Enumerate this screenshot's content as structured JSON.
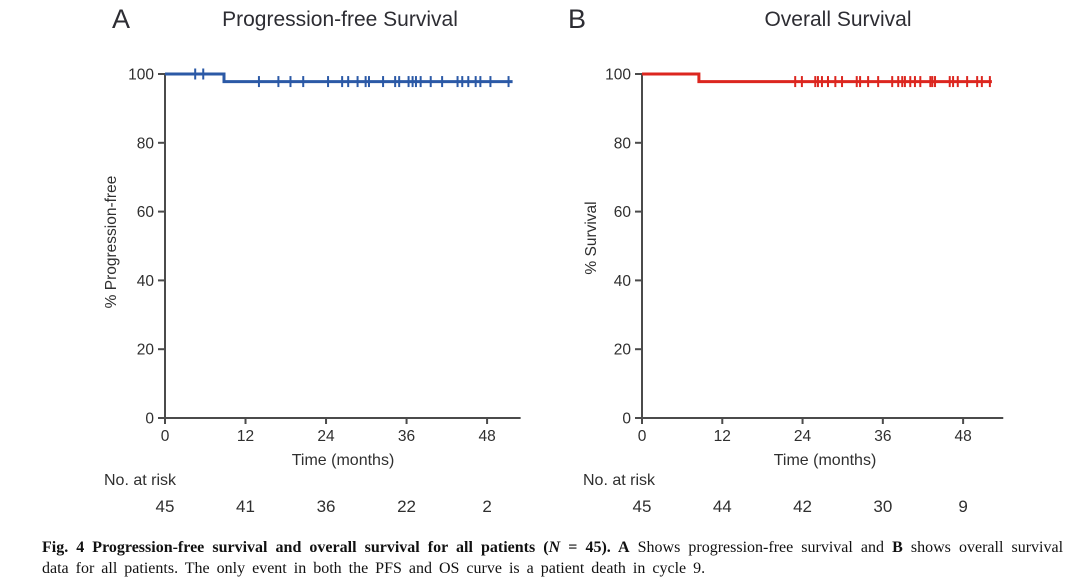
{
  "page": {
    "background": "#ffffff"
  },
  "chart_data": [
    {
      "type": "line",
      "subtype": "kaplan-meier-step",
      "panel": "A",
      "title": "Progression-free Survival",
      "ylabel": "% Progression-free",
      "xlabel": "Time (months)",
      "xticks": [
        0,
        12,
        24,
        36,
        48
      ],
      "yticks": [
        0,
        20,
        40,
        60,
        80,
        100
      ],
      "xlim": [
        0,
        53
      ],
      "ylim": [
        0,
        100
      ],
      "grid": false,
      "legend": "none",
      "color": "#2b59a6",
      "steps": [
        [
          0,
          100
        ],
        [
          8.8,
          100
        ],
        [
          8.8,
          97.8
        ],
        [
          51.8,
          97.8
        ]
      ],
      "censors": [
        [
          4.5,
          100
        ],
        [
          5.7,
          100
        ],
        [
          14,
          97.8
        ],
        [
          16.9,
          97.8
        ],
        [
          18.7,
          97.8
        ],
        [
          20.6,
          97.8
        ],
        [
          24.3,
          97.8
        ],
        [
          26.4,
          97.8
        ],
        [
          27.3,
          97.8
        ],
        [
          28.7,
          97.8
        ],
        [
          29.9,
          97.8
        ],
        [
          30.4,
          97.8
        ],
        [
          32.5,
          97.8
        ],
        [
          34.3,
          97.8
        ],
        [
          34.9,
          97.8
        ],
        [
          36.3,
          97.8
        ],
        [
          36.9,
          97.8
        ],
        [
          37.4,
          97.8
        ],
        [
          38.1,
          97.8
        ],
        [
          39.6,
          97.8
        ],
        [
          41.3,
          97.8
        ],
        [
          43.6,
          97.8
        ],
        [
          44.3,
          97.8
        ],
        [
          45.2,
          97.8
        ],
        [
          46.3,
          97.8
        ],
        [
          47.0,
          97.8
        ],
        [
          48.5,
          97.8
        ],
        [
          51.2,
          97.8
        ]
      ],
      "risk_label": "No. at risk",
      "risk_times": [
        0,
        12,
        24,
        36,
        48
      ],
      "risk_counts": [
        "45",
        "41",
        "36",
        "22",
        "2"
      ]
    },
    {
      "type": "line",
      "subtype": "kaplan-meier-step",
      "panel": "B",
      "title": "Overall Survival",
      "ylabel": "% Survival",
      "xlabel": "Time (months)",
      "xticks": [
        0,
        12,
        24,
        36,
        48
      ],
      "yticks": [
        0,
        20,
        40,
        60,
        80,
        100
      ],
      "xlim": [
        0,
        54
      ],
      "ylim": [
        0,
        100
      ],
      "grid": false,
      "legend": "none",
      "color": "#dc261f",
      "steps": [
        [
          0,
          100
        ],
        [
          8.5,
          100
        ],
        [
          8.5,
          97.8
        ],
        [
          52.3,
          97.8
        ]
      ],
      "censors": [
        [
          22.9,
          97.8
        ],
        [
          23.9,
          97.8
        ],
        [
          25.9,
          97.8
        ],
        [
          26.3,
          97.8
        ],
        [
          26.9,
          97.8
        ],
        [
          27.8,
          97.8
        ],
        [
          28.9,
          97.8
        ],
        [
          29.9,
          97.8
        ],
        [
          32.1,
          97.8
        ],
        [
          32.6,
          97.8
        ],
        [
          33.8,
          97.8
        ],
        [
          35.3,
          97.8
        ],
        [
          37.4,
          97.8
        ],
        [
          38.3,
          97.8
        ],
        [
          38.9,
          97.8
        ],
        [
          39.3,
          97.8
        ],
        [
          40.1,
          97.8
        ],
        [
          40.8,
          97.8
        ],
        [
          41.6,
          97.8
        ],
        [
          43.1,
          97.8
        ],
        [
          43.4,
          97.8
        ],
        [
          43.8,
          97.8
        ],
        [
          46.0,
          97.8
        ],
        [
          46.5,
          97.8
        ],
        [
          47.2,
          97.8
        ],
        [
          48.6,
          97.8
        ],
        [
          50.1,
          97.8
        ],
        [
          50.8,
          97.8
        ],
        [
          52.0,
          97.8
        ]
      ],
      "risk_label": "No. at risk",
      "risk_times": [
        0,
        12,
        24,
        36,
        48
      ],
      "risk_counts": [
        "45",
        "44",
        "42",
        "30",
        "9"
      ]
    }
  ],
  "style": {
    "axis_color": "#4b4b4b",
    "text_color": "#2f2f2f"
  },
  "figure_caption": {
    "line1": [
      {
        "text": "Fig. 4 Progression-free survival and overall survival for all patients (",
        "style": "bold"
      },
      {
        "text": "N",
        "style": "bolditalic"
      },
      {
        "text": " = 45). ",
        "style": "bold"
      },
      {
        "text": "A",
        "style": "bold"
      },
      {
        "text": " Shows progression-free survival and ",
        "style": "normal"
      },
      {
        "text": "B",
        "style": "bold"
      },
      {
        "text": " shows overall survival",
        "style": "normal"
      }
    ],
    "line2": [
      {
        "text": "data for all patients. The only event in both the PFS and OS curve is a patient death in cycle 9.",
        "style": "normal"
      }
    ]
  }
}
